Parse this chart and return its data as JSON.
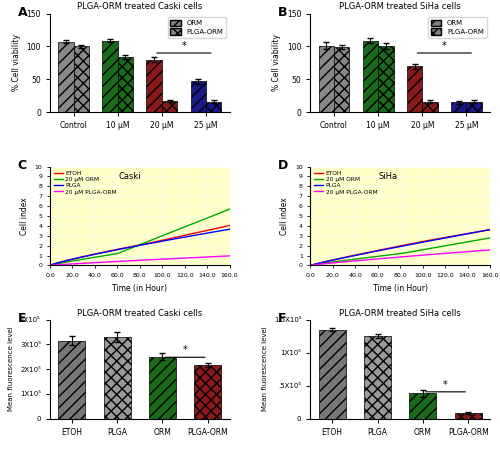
{
  "A_title": "PLGA-ORM treated Caski cells",
  "B_title": "PLGA-ORM treated SiHa cells",
  "E_title": "PLGA-ORM treated Caski cells",
  "F_title": "PLGA-ORM treated SiHa cells",
  "AB_categories": [
    "Control",
    "10 μM",
    "20 μM",
    "25 μM"
  ],
  "A_ORM": [
    107,
    109,
    80,
    47
  ],
  "A_PLGAORM": [
    100,
    84,
    17,
    16
  ],
  "A_ORM_err": [
    2.5,
    2.0,
    3.5,
    3.5
  ],
  "A_PLGA_err": [
    2.5,
    2.5,
    2.0,
    2.0
  ],
  "B_ORM": [
    101,
    109,
    70,
    15
  ],
  "B_PLGAORM": [
    99,
    100,
    16,
    16
  ],
  "B_ORM_err": [
    5.0,
    4.0,
    4.0,
    2.0
  ],
  "B_PLGA_err": [
    3.0,
    4.5,
    2.5,
    2.5
  ],
  "bar_colors_ORM": [
    "#808080",
    "#006400",
    "#8B0000",
    "#00008B"
  ],
  "bar_colors_PLGA": [
    "#808080",
    "#006400",
    "#8B0000",
    "#00008B"
  ],
  "CD_xlabel": "Time (in Hour)",
  "CD_ylabel": "Cell index",
  "CD_xlim": [
    0,
    160
  ],
  "CD_ylim": [
    0.0,
    10.0
  ],
  "CD_xticks": [
    0.0,
    20.0,
    40.0,
    60.0,
    80.0,
    100.0,
    120.0,
    140.0,
    160.0
  ],
  "CD_yticks": [
    0.0,
    1.0,
    2.0,
    3.0,
    4.0,
    5.0,
    6.0,
    7.0,
    8.0,
    9.0,
    10.0
  ],
  "C_label": "Caski",
  "D_label": "SiHa",
  "legend_labels_CD": [
    "ETOH",
    "20 μM ORM",
    "PLGA",
    "20 μM PLGA-ORM"
  ],
  "line_colors_CD": [
    "#FF0000",
    "#00AA00",
    "#0000FF",
    "#FF00FF"
  ],
  "EF_categories": [
    "ETOH",
    "PLGA",
    "ORM",
    "PLGA-ORM"
  ],
  "E_values": [
    315000,
    330000,
    250000,
    215000
  ],
  "E_errors": [
    18000,
    22000,
    15000,
    8000
  ],
  "F_values": [
    1350000,
    1250000,
    380000,
    90000
  ],
  "F_errors": [
    20000,
    30000,
    50000,
    15000
  ],
  "EF_bar_colors": [
    "#808080",
    "#A0A0A0",
    "#006400",
    "#8B0000"
  ],
  "E_ylabel": "Mean fluorescence level",
  "F_ylabel": "Mean fluorescence level",
  "ylabel_AB": "% Cell viability",
  "AB_ylim": [
    0,
    150
  ],
  "AB_yticks": [
    0,
    50,
    100,
    150
  ],
  "bg_color": "#FFFFC8"
}
